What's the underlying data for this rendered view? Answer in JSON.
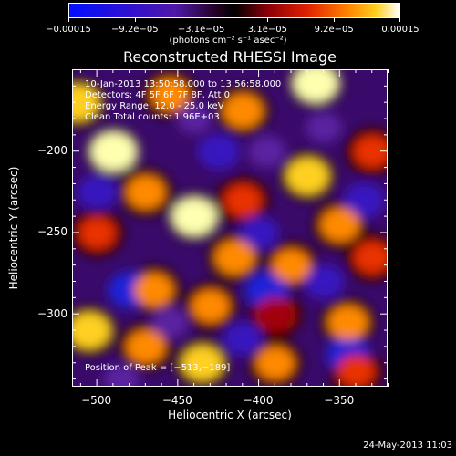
{
  "chart_data": {
    "type": "heatmap",
    "title": "Reconstructed RHESSI Image",
    "xlabel": "Heliocentric X (arcsec)",
    "ylabel": "Heliocentric Y (arcsec)",
    "xlim": [
      -515,
      -320
    ],
    "ylim": [
      -345,
      -150
    ],
    "x_ticks": [
      -500,
      -450,
      -400,
      -350
    ],
    "x_tick_labels": [
      "−500",
      "−450",
      "−400",
      "−350"
    ],
    "y_ticks": [
      -200,
      -250,
      -300
    ],
    "y_tick_labels": [
      "−200",
      "−250",
      "−300"
    ],
    "colorbar": {
      "range": [
        -0.00015,
        0.00015
      ],
      "ticks": [
        "−0.00015",
        "−9.2e−05",
        "−3.1e−05",
        "3.1e−05",
        "9.2e−05",
        "0.00015"
      ],
      "unit_label": "(photons cm⁻² s⁻¹ asec⁻²)"
    },
    "annotations": {
      "time": "10-Jan-2013 13:50:58.000 to 13:56:58.000",
      "detectors": "Detectors: 4F 5F 6F 7F 8F, Att 0",
      "energy": "Energy Range: 12.0 - 25.0 keV",
      "method": "Clean     Total counts: 1.96E+03",
      "peak": "Position of Peak = [−513,−189]"
    },
    "peak": [
      -513,
      -189
    ],
    "hot_spots": [
      {
        "x": -512,
        "y": -170,
        "v": 0.00012
      },
      {
        "x": -490,
        "y": -200,
        "v": 0.00014
      },
      {
        "x": -455,
        "y": -165,
        "v": 8e-05
      },
      {
        "x": -410,
        "y": -175,
        "v": 0.0001
      },
      {
        "x": -365,
        "y": -158,
        "v": 0.00013
      },
      {
        "x": -330,
        "y": -200,
        "v": 7e-05
      },
      {
        "x": -470,
        "y": -225,
        "v": 9e-05
      },
      {
        "x": -440,
        "y": -240,
        "v": 0.00013
      },
      {
        "x": -410,
        "y": -230,
        "v": 7e-05
      },
      {
        "x": -370,
        "y": -215,
        "v": 0.00012
      },
      {
        "x": -350,
        "y": -245,
        "v": 9e-05
      },
      {
        "x": -500,
        "y": -250,
        "v": 6e-05
      },
      {
        "x": -415,
        "y": -265,
        "v": 0.0001
      },
      {
        "x": -380,
        "y": -270,
        "v": 8e-05
      },
      {
        "x": -330,
        "y": -265,
        "v": 7e-05
      },
      {
        "x": -465,
        "y": -285,
        "v": 9e-05
      },
      {
        "x": -430,
        "y": -295,
        "v": 8e-05
      },
      {
        "x": -505,
        "y": -310,
        "v": 0.00012
      },
      {
        "x": -470,
        "y": -320,
        "v": 9e-05
      },
      {
        "x": -435,
        "y": -330,
        "v": 0.00011
      },
      {
        "x": -345,
        "y": -305,
        "v": 0.0001
      },
      {
        "x": -390,
        "y": -330,
        "v": 8e-05
      },
      {
        "x": -340,
        "y": -335,
        "v": 6e-05
      },
      {
        "x": -390,
        "y": -300,
        "v": 5e-05
      }
    ],
    "cold_spots": [
      {
        "x": -480,
        "y": -285,
        "v": -0.00012
      },
      {
        "x": -500,
        "y": -225,
        "v": -0.0001
      },
      {
        "x": -425,
        "y": -200,
        "v": -0.00011
      },
      {
        "x": -395,
        "y": -200,
        "v": -8e-05
      },
      {
        "x": -360,
        "y": -185,
        "v": -7e-05
      },
      {
        "x": -335,
        "y": -230,
        "v": -0.00011
      },
      {
        "x": -400,
        "y": -250,
        "v": -9e-05
      },
      {
        "x": -395,
        "y": -285,
        "v": -0.00012
      },
      {
        "x": -360,
        "y": -280,
        "v": -0.0001
      },
      {
        "x": -345,
        "y": -325,
        "v": -0.00012
      },
      {
        "x": -410,
        "y": -315,
        "v": -9e-05
      },
      {
        "x": -455,
        "y": -305,
        "v": -8e-05
      },
      {
        "x": -440,
        "y": -180,
        "v": -6e-05
      },
      {
        "x": -485,
        "y": -340,
        "v": -7e-05
      }
    ]
  },
  "footer": {
    "date": "24-May-2013 11:03"
  }
}
